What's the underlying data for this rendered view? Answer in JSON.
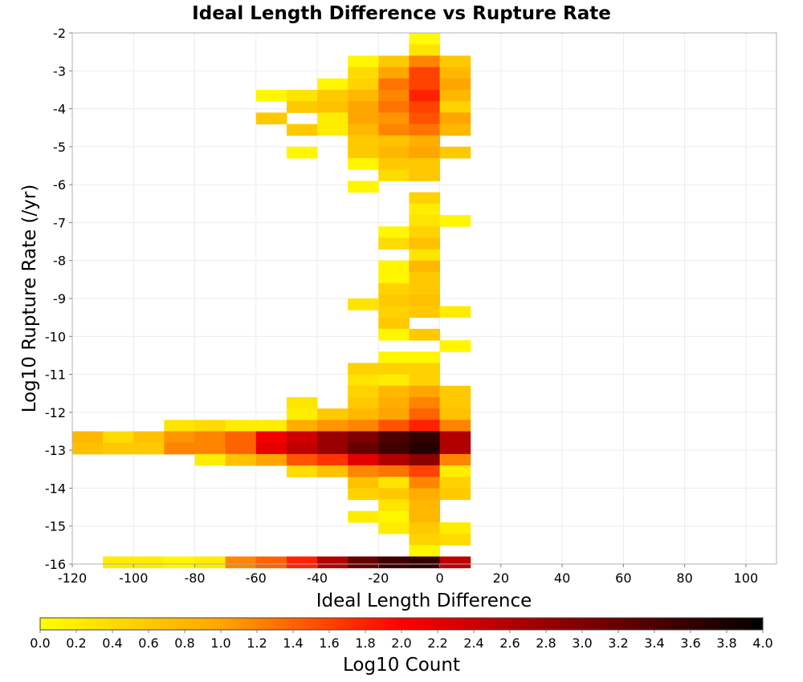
{
  "chart_data": {
    "type": "heatmap",
    "title": "Ideal Length Difference vs Rupture Rate",
    "xlabel": "Ideal Length Difference",
    "ylabel": "Log10 Rupture Rate (/yr)",
    "xlim": [
      -120,
      110
    ],
    "ylim": [
      -16,
      -2
    ],
    "x_ticks": [
      "-120",
      "-100",
      "-80",
      "-60",
      "-40",
      "-20",
      "0",
      "20",
      "40",
      "60",
      "80",
      "100"
    ],
    "y_ticks": [
      "-2",
      "-3",
      "-4",
      "-5",
      "-6",
      "-7",
      "-8",
      "-9",
      "-10",
      "-11",
      "-12",
      "-13",
      "-14",
      "-15",
      "-16"
    ],
    "grid": true,
    "x_bin_width": 10,
    "y_bin_width": 0.3,
    "colorbar": {
      "label": "Log10 Count",
      "range": [
        0.0,
        4.0
      ],
      "ticks": [
        "0.0",
        "0.2",
        "0.4",
        "0.6",
        "0.8",
        "1.0",
        "1.2",
        "1.4",
        "1.6",
        "1.8",
        "2.0",
        "2.2",
        "2.4",
        "2.6",
        "2.8",
        "3.0",
        "3.2",
        "3.4",
        "3.6",
        "3.8",
        "4.0"
      ],
      "colors": [
        "#ffff00",
        "#ffa500",
        "#ff0000",
        "#7f0000",
        "#000000"
      ]
    },
    "cells": [
      {
        "x": -5,
        "y": -2.15,
        "v": 0.05
      },
      {
        "x": -5,
        "y": -2.45,
        "v": 0.3
      },
      {
        "x": -25,
        "y": -2.75,
        "v": 0.1
      },
      {
        "x": -15,
        "y": -2.75,
        "v": 0.6
      },
      {
        "x": -5,
        "y": -2.75,
        "v": 1.2
      },
      {
        "x": 5,
        "y": -2.75,
        "v": 0.6
      },
      {
        "x": -25,
        "y": -3.05,
        "v": 0.4
      },
      {
        "x": -15,
        "y": -3.05,
        "v": 1.0
      },
      {
        "x": -5,
        "y": -3.05,
        "v": 1.6
      },
      {
        "x": 5,
        "y": -3.05,
        "v": 0.8
      },
      {
        "x": -35,
        "y": -3.35,
        "v": 0.1
      },
      {
        "x": -25,
        "y": -3.35,
        "v": 0.5
      },
      {
        "x": -15,
        "y": -3.35,
        "v": 1.3
      },
      {
        "x": -5,
        "y": -3.35,
        "v": 1.6
      },
      {
        "x": 5,
        "y": -3.35,
        "v": 1.0
      },
      {
        "x": -55,
        "y": -3.65,
        "v": 0.1
      },
      {
        "x": -45,
        "y": -3.65,
        "v": 0.3
      },
      {
        "x": -35,
        "y": -3.65,
        "v": 0.6
      },
      {
        "x": -25,
        "y": -3.65,
        "v": 0.8
      },
      {
        "x": -15,
        "y": -3.65,
        "v": 1.2
      },
      {
        "x": -5,
        "y": -3.65,
        "v": 1.8
      },
      {
        "x": 5,
        "y": -3.65,
        "v": 0.8
      },
      {
        "x": -45,
        "y": -3.95,
        "v": 0.6
      },
      {
        "x": -35,
        "y": -3.95,
        "v": 0.7
      },
      {
        "x": -25,
        "y": -3.95,
        "v": 1.0
      },
      {
        "x": -15,
        "y": -3.95,
        "v": 1.3
      },
      {
        "x": -5,
        "y": -3.95,
        "v": 1.6
      },
      {
        "x": 5,
        "y": -3.95,
        "v": 0.5
      },
      {
        "x": -55,
        "y": -4.25,
        "v": 0.6
      },
      {
        "x": -35,
        "y": -4.25,
        "v": 0.2
      },
      {
        "x": -25,
        "y": -4.25,
        "v": 1.0
      },
      {
        "x": -15,
        "y": -4.25,
        "v": 1.1
      },
      {
        "x": -5,
        "y": -4.25,
        "v": 1.5
      },
      {
        "x": 5,
        "y": -4.25,
        "v": 1.0
      },
      {
        "x": -45,
        "y": -4.55,
        "v": 0.6
      },
      {
        "x": -35,
        "y": -4.55,
        "v": 0.2
      },
      {
        "x": -25,
        "y": -4.55,
        "v": 0.8
      },
      {
        "x": -15,
        "y": -4.55,
        "v": 1.2
      },
      {
        "x": -5,
        "y": -4.55,
        "v": 1.3
      },
      {
        "x": 5,
        "y": -4.55,
        "v": 0.8
      },
      {
        "x": -25,
        "y": -4.85,
        "v": 0.6
      },
      {
        "x": -15,
        "y": -4.85,
        "v": 0.7
      },
      {
        "x": -5,
        "y": -4.85,
        "v": 0.9
      },
      {
        "x": -45,
        "y": -5.15,
        "v": 0.1
      },
      {
        "x": -25,
        "y": -5.15,
        "v": 0.6
      },
      {
        "x": -15,
        "y": -5.15,
        "v": 0.8
      },
      {
        "x": -5,
        "y": -5.15,
        "v": 1.0
      },
      {
        "x": 5,
        "y": -5.15,
        "v": 0.6
      },
      {
        "x": -25,
        "y": -5.45,
        "v": 0.1
      },
      {
        "x": -15,
        "y": -5.45,
        "v": 0.6
      },
      {
        "x": -5,
        "y": -5.45,
        "v": 0.6
      },
      {
        "x": -15,
        "y": -5.75,
        "v": 0.4
      },
      {
        "x": -5,
        "y": -5.75,
        "v": 0.6
      },
      {
        "x": -25,
        "y": -6.05,
        "v": 0.1
      },
      {
        "x": -5,
        "y": -6.35,
        "v": 0.5
      },
      {
        "x": -5,
        "y": -6.65,
        "v": 0.2
      },
      {
        "x": -5,
        "y": -6.95,
        "v": 0.3
      },
      {
        "x": 5,
        "y": -6.95,
        "v": 0.1
      },
      {
        "x": -15,
        "y": -7.25,
        "v": 0.1
      },
      {
        "x": -5,
        "y": -7.25,
        "v": 0.5
      },
      {
        "x": -15,
        "y": -7.55,
        "v": 0.4
      },
      {
        "x": -5,
        "y": -7.55,
        "v": 0.7
      },
      {
        "x": -5,
        "y": -7.85,
        "v": 0.3
      },
      {
        "x": -15,
        "y": -8.15,
        "v": 0.1
      },
      {
        "x": -5,
        "y": -8.15,
        "v": 0.8
      },
      {
        "x": -15,
        "y": -8.45,
        "v": 0.1
      },
      {
        "x": -5,
        "y": -8.45,
        "v": 0.6
      },
      {
        "x": -15,
        "y": -8.75,
        "v": 0.5
      },
      {
        "x": -5,
        "y": -8.75,
        "v": 0.6
      },
      {
        "x": -15,
        "y": -9.05,
        "v": 0.6
      },
      {
        "x": -5,
        "y": -9.05,
        "v": 0.7
      },
      {
        "x": -25,
        "y": -9.15,
        "v": 0.3
      },
      {
        "x": -15,
        "y": -9.35,
        "v": 0.5
      },
      {
        "x": -5,
        "y": -9.35,
        "v": 0.6
      },
      {
        "x": 5,
        "y": -9.35,
        "v": 0.2
      },
      {
        "x": -15,
        "y": -9.65,
        "v": 0.6
      },
      {
        "x": -15,
        "y": -9.95,
        "v": 0.1
      },
      {
        "x": -5,
        "y": -9.95,
        "v": 0.6
      },
      {
        "x": 5,
        "y": -10.25,
        "v": 0.1
      },
      {
        "x": -15,
        "y": -10.55,
        "v": 0.1
      },
      {
        "x": -5,
        "y": -10.55,
        "v": 0.1
      },
      {
        "x": -25,
        "y": -10.85,
        "v": 0.5
      },
      {
        "x": -15,
        "y": -10.85,
        "v": 0.5
      },
      {
        "x": -5,
        "y": -10.85,
        "v": 0.5
      },
      {
        "x": -25,
        "y": -11.15,
        "v": 0.3
      },
      {
        "x": -15,
        "y": -11.15,
        "v": 0.2
      },
      {
        "x": -5,
        "y": -11.15,
        "v": 0.5
      },
      {
        "x": -25,
        "y": -11.45,
        "v": 0.5
      },
      {
        "x": -15,
        "y": -11.45,
        "v": 0.8
      },
      {
        "x": -5,
        "y": -11.45,
        "v": 1.0
      },
      {
        "x": 5,
        "y": -11.45,
        "v": 0.6
      },
      {
        "x": -45,
        "y": -11.75,
        "v": 0.3
      },
      {
        "x": -25,
        "y": -11.75,
        "v": 0.6
      },
      {
        "x": -15,
        "y": -11.75,
        "v": 0.9
      },
      {
        "x": -5,
        "y": -11.75,
        "v": 1.2
      },
      {
        "x": 5,
        "y": -11.75,
        "v": 0.6
      },
      {
        "x": -45,
        "y": -12.05,
        "v": 0.2
      },
      {
        "x": -35,
        "y": -12.05,
        "v": 0.6
      },
      {
        "x": -25,
        "y": -12.05,
        "v": 0.8
      },
      {
        "x": -15,
        "y": -12.05,
        "v": 1.0
      },
      {
        "x": -5,
        "y": -12.05,
        "v": 1.4
      },
      {
        "x": 5,
        "y": -12.05,
        "v": 0.7
      },
      {
        "x": -85,
        "y": -12.35,
        "v": 0.3
      },
      {
        "x": -75,
        "y": -12.35,
        "v": 0.4
      },
      {
        "x": -65,
        "y": -12.35,
        "v": 0.2
      },
      {
        "x": -55,
        "y": -12.35,
        "v": 0.2
      },
      {
        "x": -45,
        "y": -12.35,
        "v": 0.9
      },
      {
        "x": -35,
        "y": -12.35,
        "v": 1.1
      },
      {
        "x": -25,
        "y": -12.35,
        "v": 1.2
      },
      {
        "x": -15,
        "y": -12.35,
        "v": 1.5
      },
      {
        "x": -5,
        "y": -12.35,
        "v": 1.8
      },
      {
        "x": 5,
        "y": -12.35,
        "v": 1.2
      },
      {
        "x": -115,
        "y": -12.65,
        "v": 0.8
      },
      {
        "x": -105,
        "y": -12.65,
        "v": 0.4
      },
      {
        "x": -95,
        "y": -12.65,
        "v": 0.7
      },
      {
        "x": -85,
        "y": -12.65,
        "v": 1.1
      },
      {
        "x": -75,
        "y": -12.65,
        "v": 1.2
      },
      {
        "x": -65,
        "y": -12.65,
        "v": 1.4
      },
      {
        "x": -55,
        "y": -12.65,
        "v": 2.1
      },
      {
        "x": -45,
        "y": -12.65,
        "v": 2.4
      },
      {
        "x": -35,
        "y": -12.65,
        "v": 2.8
      },
      {
        "x": -25,
        "y": -12.65,
        "v": 3.0
      },
      {
        "x": -15,
        "y": -12.65,
        "v": 3.4
      },
      {
        "x": -5,
        "y": -12.65,
        "v": 3.6
      },
      {
        "x": 5,
        "y": -12.65,
        "v": 2.6
      },
      {
        "x": -115,
        "y": -12.95,
        "v": 0.7
      },
      {
        "x": -105,
        "y": -12.95,
        "v": 0.6
      },
      {
        "x": -95,
        "y": -12.95,
        "v": 0.6
      },
      {
        "x": -85,
        "y": -12.95,
        "v": 1.2
      },
      {
        "x": -75,
        "y": -12.95,
        "v": 1.2
      },
      {
        "x": -65,
        "y": -12.95,
        "v": 1.4
      },
      {
        "x": -55,
        "y": -12.95,
        "v": 2.2
      },
      {
        "x": -45,
        "y": -12.95,
        "v": 2.5
      },
      {
        "x": -35,
        "y": -12.95,
        "v": 2.8
      },
      {
        "x": -25,
        "y": -12.95,
        "v": 3.2
      },
      {
        "x": -15,
        "y": -12.95,
        "v": 3.5
      },
      {
        "x": -5,
        "y": -12.95,
        "v": 3.7
      },
      {
        "x": 5,
        "y": -12.95,
        "v": 2.6
      },
      {
        "x": -75,
        "y": -13.25,
        "v": 0.2
      },
      {
        "x": -65,
        "y": -13.25,
        "v": 0.7
      },
      {
        "x": -55,
        "y": -13.25,
        "v": 1.0
      },
      {
        "x": -45,
        "y": -13.25,
        "v": 1.5
      },
      {
        "x": -35,
        "y": -13.25,
        "v": 1.7
      },
      {
        "x": -25,
        "y": -13.25,
        "v": 2.2
      },
      {
        "x": -15,
        "y": -13.25,
        "v": 2.6
      },
      {
        "x": -5,
        "y": -13.25,
        "v": 2.9
      },
      {
        "x": 5,
        "y": -13.25,
        "v": 1.2
      },
      {
        "x": -45,
        "y": -13.55,
        "v": 0.4
      },
      {
        "x": -35,
        "y": -13.55,
        "v": 0.7
      },
      {
        "x": -25,
        "y": -13.55,
        "v": 1.2
      },
      {
        "x": -15,
        "y": -13.55,
        "v": 1.3
      },
      {
        "x": -5,
        "y": -13.55,
        "v": 1.6
      },
      {
        "x": 5,
        "y": -13.55,
        "v": 0.2
      },
      {
        "x": -25,
        "y": -13.85,
        "v": 0.7
      },
      {
        "x": -15,
        "y": -13.85,
        "v": 0.3
      },
      {
        "x": -5,
        "y": -13.85,
        "v": 1.2
      },
      {
        "x": 5,
        "y": -13.85,
        "v": 0.5
      },
      {
        "x": -25,
        "y": -14.15,
        "v": 0.5
      },
      {
        "x": -15,
        "y": -14.15,
        "v": 0.6
      },
      {
        "x": -5,
        "y": -14.15,
        "v": 0.9
      },
      {
        "x": 5,
        "y": -14.15,
        "v": 0.6
      },
      {
        "x": -15,
        "y": -14.45,
        "v": 0.3
      },
      {
        "x": -5,
        "y": -14.45,
        "v": 0.8
      },
      {
        "x": -25,
        "y": -14.75,
        "v": 0.2
      },
      {
        "x": -15,
        "y": -14.75,
        "v": 0.1
      },
      {
        "x": -5,
        "y": -14.75,
        "v": 0.8
      },
      {
        "x": -15,
        "y": -15.05,
        "v": 0.2
      },
      {
        "x": -5,
        "y": -15.05,
        "v": 0.6
      },
      {
        "x": 5,
        "y": -15.05,
        "v": 0.2
      },
      {
        "x": -5,
        "y": -15.35,
        "v": 0.5
      },
      {
        "x": 5,
        "y": -15.35,
        "v": 0.4
      },
      {
        "x": -5,
        "y": -15.65,
        "v": 0.1
      },
      {
        "x": -105,
        "y": -15.95,
        "v": 0.2
      },
      {
        "x": -95,
        "y": -15.95,
        "v": 0.2
      },
      {
        "x": -85,
        "y": -15.95,
        "v": 0.1
      },
      {
        "x": -75,
        "y": -15.95,
        "v": 0.2
      },
      {
        "x": -65,
        "y": -15.95,
        "v": 1.2
      },
      {
        "x": -55,
        "y": -15.95,
        "v": 1.4
      },
      {
        "x": -45,
        "y": -15.95,
        "v": 1.8
      },
      {
        "x": -35,
        "y": -15.95,
        "v": 2.6
      },
      {
        "x": -25,
        "y": -15.95,
        "v": 3.2
      },
      {
        "x": -15,
        "y": -15.95,
        "v": 3.5
      },
      {
        "x": -5,
        "y": -15.95,
        "v": 3.6
      },
      {
        "x": 5,
        "y": -15.95,
        "v": 2.5
      }
    ]
  }
}
